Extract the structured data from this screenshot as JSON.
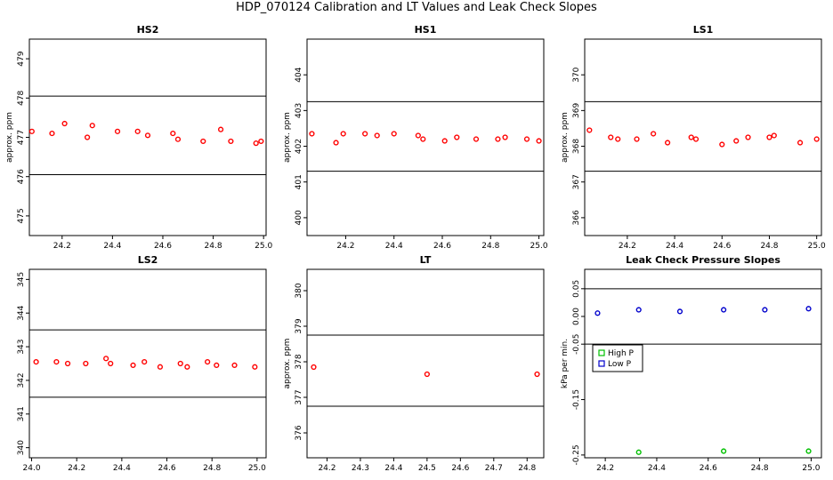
{
  "title": "HDP_070124  Calibration and LT Values and Leak Check Slopes",
  "chart_data": [
    {
      "type": "scatter",
      "title": "HS2",
      "ylabel": "approx. ppm",
      "xlim": [
        24.07,
        25.01
      ],
      "ylim": [
        474.5,
        479.5
      ],
      "xticks": [
        24.2,
        24.4,
        24.6,
        24.8,
        25.0
      ],
      "xtick_labels": [
        "24.2",
        "24.4",
        "24.6",
        "24.8",
        "25.0"
      ],
      "yticks": [
        475,
        476,
        477,
        478,
        479
      ],
      "ytick_labels": [
        "475",
        "476",
        "477",
        "478",
        "479"
      ],
      "hlines": [
        478.05,
        476.05
      ],
      "series": [
        {
          "color": "#ff0000",
          "marker": "circle",
          "x": [
            24.08,
            24.16,
            24.21,
            24.3,
            24.32,
            24.42,
            24.5,
            24.54,
            24.64,
            24.66,
            24.76,
            24.83,
            24.87,
            24.97,
            24.99
          ],
          "y": [
            477.15,
            477.1,
            477.35,
            477.0,
            477.3,
            477.15,
            477.15,
            477.05,
            477.1,
            476.95,
            476.9,
            477.2,
            476.9,
            476.85,
            476.9
          ]
        }
      ]
    },
    {
      "type": "scatter",
      "title": "HS1",
      "ylabel": "approx. ppm",
      "xlim": [
        24.04,
        25.02
      ],
      "ylim": [
        399.5,
        405
      ],
      "xticks": [
        24.2,
        24.4,
        24.6,
        24.8,
        25.0
      ],
      "xtick_labels": [
        "24.2",
        "24.4",
        "24.6",
        "24.8",
        "25.0"
      ],
      "yticks": [
        400,
        401,
        402,
        403,
        404
      ],
      "ytick_labels": [
        "400",
        "401",
        "402",
        "403",
        "404"
      ],
      "hlines": [
        403.25,
        401.3
      ],
      "series": [
        {
          "color": "#ff0000",
          "marker": "circle",
          "x": [
            24.06,
            24.16,
            24.19,
            24.28,
            24.33,
            24.4,
            24.5,
            24.52,
            24.61,
            24.66,
            24.74,
            24.83,
            24.86,
            24.95,
            25.0
          ],
          "y": [
            402.35,
            402.1,
            402.35,
            402.35,
            402.3,
            402.35,
            402.3,
            402.2,
            402.15,
            402.25,
            402.2,
            402.2,
            402.25,
            402.2,
            402.15
          ]
        }
      ]
    },
    {
      "type": "scatter",
      "title": "LS1",
      "ylabel": "approx. ppm",
      "xlim": [
        24.02,
        25.02
      ],
      "ylim": [
        365.5,
        371
      ],
      "xticks": [
        24.2,
        24.4,
        24.6,
        24.8,
        25.0
      ],
      "xtick_labels": [
        "24.2",
        "24.4",
        "24.6",
        "24.8",
        "25.0"
      ],
      "yticks": [
        366,
        367,
        368,
        369,
        370
      ],
      "ytick_labels": [
        "366",
        "367",
        "368",
        "369",
        "370"
      ],
      "hlines": [
        369.25,
        367.3
      ],
      "series": [
        {
          "color": "#ff0000",
          "marker": "circle",
          "x": [
            24.04,
            24.13,
            24.16,
            24.24,
            24.31,
            24.37,
            24.47,
            24.49,
            24.6,
            24.66,
            24.71,
            24.8,
            24.82,
            24.93,
            25.0
          ],
          "y": [
            368.45,
            368.25,
            368.2,
            368.2,
            368.35,
            368.1,
            368.25,
            368.2,
            368.05,
            368.15,
            368.25,
            368.25,
            368.3,
            368.1,
            368.2
          ]
        }
      ]
    },
    {
      "type": "scatter",
      "title": "LS2",
      "ylabel": "",
      "xlim": [
        23.99,
        25.04
      ],
      "ylim": [
        339.7,
        345.3
      ],
      "xticks": [
        24.0,
        24.2,
        24.4,
        24.6,
        24.8,
        25.0
      ],
      "xtick_labels": [
        "24.0",
        "24.2",
        "24.4",
        "24.6",
        "24.8",
        "25.0"
      ],
      "yticks": [
        340,
        341,
        342,
        343,
        344,
        345
      ],
      "ytick_labels": [
        "340",
        "341",
        "342",
        "343",
        "344",
        "345"
      ],
      "hlines": [
        343.5,
        341.5
      ],
      "series": [
        {
          "color": "#ff0000",
          "marker": "circle",
          "x": [
            24.02,
            24.11,
            24.16,
            24.24,
            24.33,
            24.35,
            24.45,
            24.5,
            24.57,
            24.66,
            24.69,
            24.78,
            24.82,
            24.9,
            24.99
          ],
          "y": [
            342.55,
            342.55,
            342.5,
            342.5,
            342.65,
            342.5,
            342.45,
            342.55,
            342.4,
            342.5,
            342.4,
            342.55,
            342.45,
            342.45,
            342.4
          ]
        }
      ]
    },
    {
      "type": "scatter",
      "title": "LT",
      "ylabel": "approx. ppm",
      "xlim": [
        24.14,
        24.85
      ],
      "ylim": [
        375.3,
        380.6
      ],
      "xticks": [
        24.2,
        24.3,
        24.4,
        24.5,
        24.6,
        24.7,
        24.8
      ],
      "xtick_labels": [
        "24.2",
        "24.3",
        "24.4",
        "24.5",
        "24.6",
        "24.7",
        "24.8"
      ],
      "yticks": [
        376,
        377,
        378,
        379,
        380
      ],
      "ytick_labels": [
        "376",
        "377",
        "378",
        "379",
        "380"
      ],
      "hlines": [
        378.75,
        376.75
      ],
      "series": [
        {
          "color": "#ff0000",
          "marker": "circle",
          "x": [
            24.16,
            24.5,
            24.83
          ],
          "y": [
            377.85,
            377.65,
            377.65
          ]
        }
      ]
    },
    {
      "type": "scatter",
      "title": "Leak Check Pressure Slopes",
      "ylabel": "kPa per min.",
      "xlim": [
        24.12,
        25.04
      ],
      "ylim": [
        -0.255,
        0.085
      ],
      "xticks": [
        24.2,
        24.4,
        24.6,
        24.8,
        25.0
      ],
      "xtick_labels": [
        "24.2",
        "24.4",
        "24.6",
        "24.8",
        "25.0"
      ],
      "yticks": [
        -0.25,
        -0.15,
        -0.05,
        0.0,
        0.05
      ],
      "ytick_labels": [
        "-0.25",
        "-0.15",
        "-0.05",
        "0.00",
        "0.05"
      ],
      "hlines": [
        0.05,
        -0.05
      ],
      "legend": {
        "placement": "left",
        "entries": [
          "High P",
          "Low P"
        ]
      },
      "series": [
        {
          "name": "High P",
          "color": "#00c000",
          "marker": "circle",
          "x": [
            24.33,
            24.66,
            24.99
          ],
          "y": [
            -0.245,
            -0.243,
            -0.243
          ]
        },
        {
          "name": "Low P",
          "color": "#0000cc",
          "marker": "circle",
          "x": [
            24.17,
            24.33,
            24.49,
            24.66,
            24.82,
            24.99
          ],
          "y": [
            0.006,
            0.012,
            0.009,
            0.012,
            0.012,
            0.014
          ]
        }
      ]
    }
  ]
}
